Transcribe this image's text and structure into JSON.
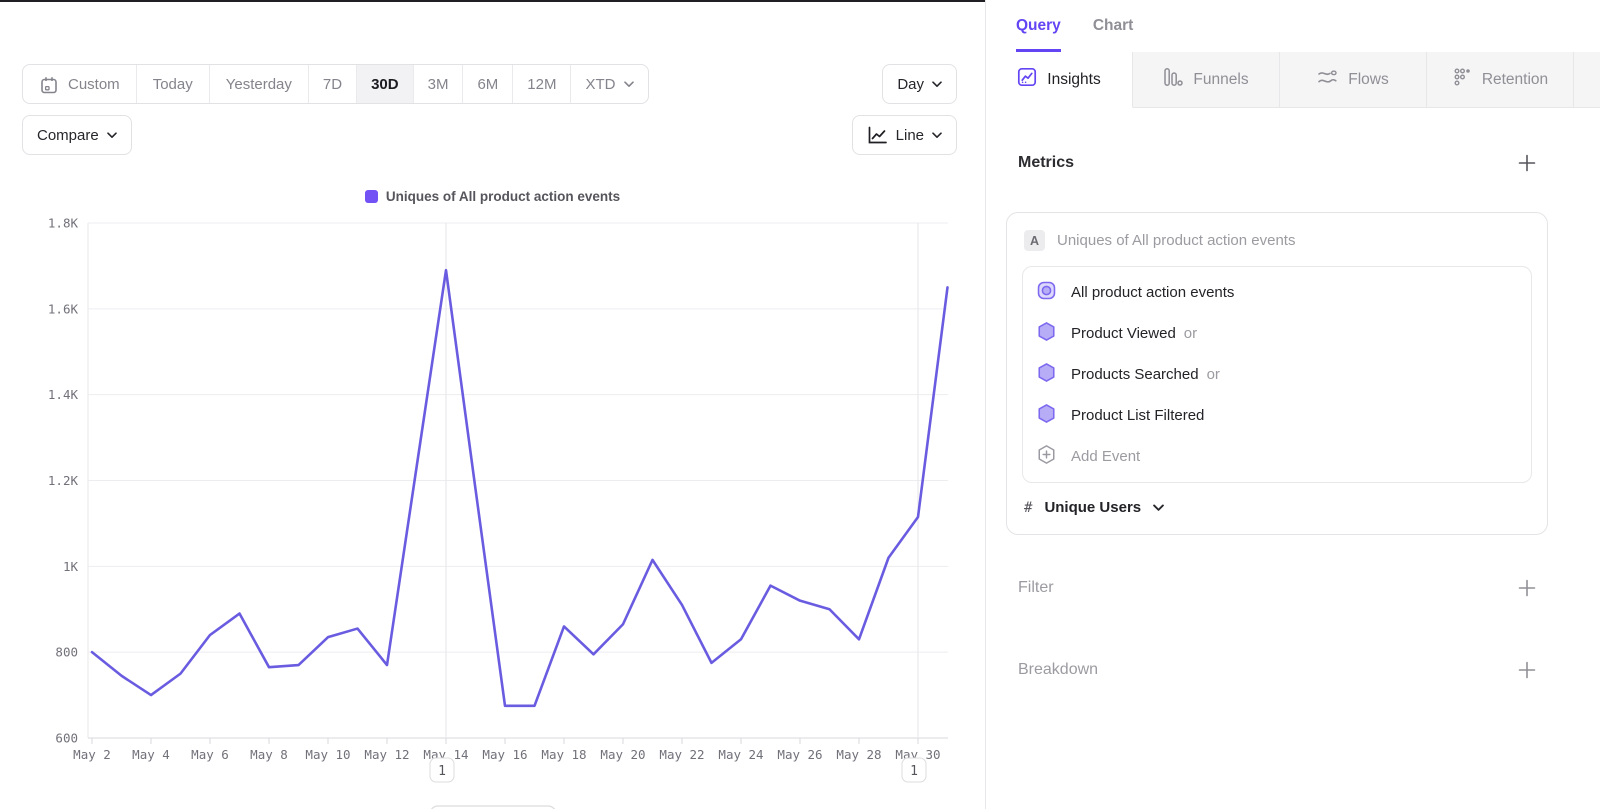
{
  "colors": {
    "accent": "#6445f3",
    "swatch": "#7352f5",
    "line": "#6a5ce0"
  },
  "panel_tabs": {
    "query": "Query",
    "chart": "Chart"
  },
  "report_tabs": [
    {
      "label": "Insights"
    },
    {
      "label": "Funnels"
    },
    {
      "label": "Flows"
    },
    {
      "label": "Retention"
    }
  ],
  "toolbar": {
    "custom_label": "Custom",
    "ranges": [
      "Today",
      "Yesterday",
      "7D",
      "30D",
      "3M",
      "6M",
      "12M"
    ],
    "xtd_label": "XTD",
    "interval_label": "Day",
    "compare_label": "Compare",
    "chart_type_label": "Line"
  },
  "metrics": {
    "title": "Metrics",
    "badge": "A",
    "summary": "Uniques of All product action events",
    "events": [
      {
        "label": "All product action events",
        "suffix": ""
      },
      {
        "label": "Product Viewed",
        "suffix": "or"
      },
      {
        "label": "Products Searched",
        "suffix": "or"
      },
      {
        "label": "Product List Filtered",
        "suffix": ""
      }
    ],
    "add_event_label": "Add Event",
    "aggregation": {
      "symbol": "#",
      "label": "Unique Users"
    }
  },
  "sections": {
    "filter": "Filter",
    "breakdown": "Breakdown"
  },
  "chart_data": {
    "type": "line",
    "legend": "Uniques of All product action events",
    "x": [
      "May 2",
      "May 3",
      "May 4",
      "May 5",
      "May 6",
      "May 7",
      "May 8",
      "May 9",
      "May 10",
      "May 11",
      "May 12",
      "May 13",
      "May 14",
      "May 15",
      "May 16",
      "May 17",
      "May 18",
      "May 19",
      "May 20",
      "May 21",
      "May 22",
      "May 23",
      "May 24",
      "May 25",
      "May 26",
      "May 27",
      "May 28",
      "May 29",
      "May 30",
      "May 31"
    ],
    "series": [
      {
        "name": "Uniques of All product action events",
        "values": [
          800,
          745,
          700,
          750,
          840,
          890,
          765,
          770,
          835,
          855,
          770,
          1230,
          1690,
          1180,
          675,
          675,
          860,
          795,
          865,
          1015,
          910,
          775,
          830,
          955,
          920,
          900,
          830,
          1020,
          1115,
          1650
        ]
      }
    ],
    "ylim": [
      600,
      1800
    ],
    "yticks": {
      "values": [
        600,
        800,
        1000,
        1200,
        1400,
        1600,
        1800
      ],
      "labels": [
        "600",
        "800",
        "1K",
        "1.2K",
        "1.4K",
        "1.6K",
        "1.8K"
      ]
    },
    "xtick_every": 2,
    "grid": "horizontal",
    "legend_position": "top-center",
    "annotations": [
      {
        "x_index": 12,
        "label": "1"
      },
      {
        "x_index": 28,
        "label": "1"
      }
    ]
  }
}
